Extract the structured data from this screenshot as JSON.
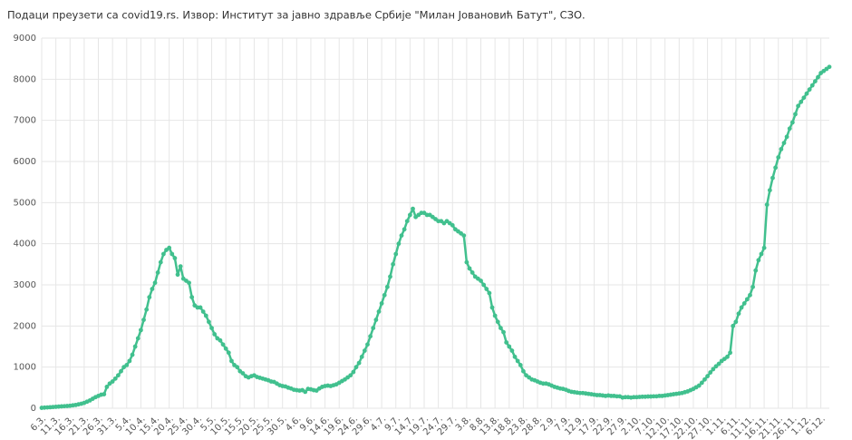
{
  "chart_data": {
    "type": "line",
    "title": "Подаци преузети са covid19.rs. Извор: Институт за јавно здравље Србије \"Милан Јовановић Батут\", СЗО.",
    "categories": [
      "6.3.",
      null,
      null,
      null,
      null,
      "11.3.",
      null,
      null,
      null,
      null,
      "16.3.",
      null,
      null,
      null,
      null,
      "21.3.",
      null,
      null,
      null,
      null,
      "26.3.",
      null,
      null,
      null,
      null,
      "31.3.",
      null,
      null,
      null,
      null,
      "5.4.",
      null,
      null,
      null,
      null,
      "10.4.",
      null,
      null,
      null,
      null,
      "15.4.",
      null,
      null,
      null,
      null,
      "20.4.",
      null,
      null,
      null,
      null,
      "25.4.",
      null,
      null,
      null,
      null,
      "30.4.",
      null,
      null,
      null,
      null,
      "5.5.",
      null,
      null,
      null,
      null,
      "10.5.",
      null,
      null,
      null,
      null,
      "15.5.",
      null,
      null,
      null,
      null,
      "20.5.",
      null,
      null,
      null,
      null,
      "25.5.",
      null,
      null,
      null,
      null,
      "30.5.",
      null,
      null,
      null,
      null,
      "4.6.",
      null,
      null,
      null,
      null,
      "9.6.",
      null,
      null,
      null,
      null,
      "14.6.",
      null,
      null,
      null,
      null,
      "19.6.",
      null,
      null,
      null,
      null,
      "24.6.",
      null,
      null,
      null,
      null,
      "29.6.",
      null,
      null,
      null,
      null,
      "4.7.",
      null,
      null,
      null,
      null,
      "9.7.",
      null,
      null,
      null,
      null,
      "14.7.",
      null,
      null,
      null,
      null,
      "19.7.",
      null,
      null,
      null,
      null,
      "24.7.",
      null,
      null,
      null,
      null,
      "29.7.",
      null,
      null,
      null,
      null,
      "3.8.",
      null,
      null,
      null,
      null,
      "8.8.",
      null,
      null,
      null,
      null,
      "13.8.",
      null,
      null,
      null,
      null,
      "18.8.",
      null,
      null,
      null,
      null,
      "23.8.",
      null,
      null,
      null,
      null,
      "28.8.",
      null,
      null,
      null,
      null,
      "2.9.",
      null,
      null,
      null,
      null,
      "7.9.",
      null,
      null,
      null,
      null,
      "12.9.",
      null,
      null,
      null,
      null,
      "17.9.",
      null,
      null,
      null,
      null,
      "22.9.",
      null,
      null,
      null,
      null,
      "27.9.",
      null,
      null,
      null,
      null,
      "2.10.",
      null,
      null,
      null,
      null,
      "7.10.",
      null,
      null,
      null,
      null,
      "12.10.",
      null,
      null,
      null,
      null,
      "17.10.",
      null,
      null,
      null,
      null,
      "22.10.",
      null,
      null,
      null,
      null,
      "27.10.",
      null,
      null,
      null,
      null,
      "1.11.",
      null,
      null,
      null,
      null,
      "6.11.",
      null,
      null,
      null,
      null,
      "11.11.",
      null,
      null,
      null,
      null,
      "16.11.",
      null,
      null,
      null,
      null,
      "21.11.",
      null,
      null,
      null,
      null,
      "26.11.",
      null,
      null,
      null,
      null,
      "1.12.",
      null,
      null,
      null,
      null,
      "6.12.",
      null,
      null,
      null
    ],
    "series": [
      {
        "color": "#41c08e",
        "values": [
          10,
          15,
          20,
          25,
          30,
          35,
          40,
          45,
          50,
          55,
          60,
          70,
          80,
          95,
          110,
          130,
          160,
          190,
          230,
          270,
          300,
          330,
          340,
          520,
          600,
          650,
          720,
          800,
          900,
          1000,
          1050,
          1150,
          1300,
          1500,
          1700,
          1900,
          2150,
          2400,
          2700,
          2900,
          3050,
          3300,
          3550,
          3750,
          3850,
          3900,
          3750,
          3650,
          3250,
          3450,
          3150,
          3100,
          3050,
          2700,
          2500,
          2450,
          2450,
          2350,
          2250,
          2100,
          1950,
          1800,
          1700,
          1650,
          1550,
          1450,
          1350,
          1150,
          1050,
          1000,
          900,
          850,
          780,
          750,
          780,
          800,
          760,
          740,
          720,
          700,
          680,
          650,
          640,
          600,
          560,
          540,
          530,
          500,
          480,
          450,
          440,
          430,
          440,
          400,
          470,
          460,
          440,
          430,
          480,
          520,
          540,
          550,
          540,
          560,
          580,
          620,
          660,
          700,
          750,
          800,
          880,
          1000,
          1100,
          1250,
          1400,
          1550,
          1750,
          1950,
          2150,
          2350,
          2550,
          2750,
          2950,
          3200,
          3500,
          3750,
          4000,
          4200,
          4350,
          4550,
          4700,
          4850,
          4650,
          4700,
          4750,
          4750,
          4700,
          4700,
          4650,
          4600,
          4550,
          4550,
          4500,
          4550,
          4500,
          4450,
          4350,
          4300,
          4250,
          4200,
          3550,
          3400,
          3300,
          3200,
          3150,
          3100,
          3000,
          2900,
          2800,
          2450,
          2250,
          2100,
          1950,
          1850,
          1600,
          1500,
          1400,
          1250,
          1150,
          1050,
          900,
          800,
          750,
          700,
          680,
          650,
          620,
          600,
          600,
          580,
          550,
          520,
          500,
          480,
          470,
          450,
          420,
          400,
          390,
          380,
          370,
          370,
          360,
          350,
          340,
          330,
          320,
          320,
          310,
          300,
          310,
          300,
          300,
          290,
          290,
          260,
          270,
          270,
          260,
          270,
          270,
          275,
          280,
          280,
          285,
          285,
          290,
          290,
          300,
          300,
          310,
          320,
          330,
          340,
          350,
          360,
          370,
          390,
          410,
          440,
          470,
          510,
          550,
          620,
          700,
          780,
          870,
          950,
          1020,
          1080,
          1150,
          1200,
          1250,
          1350,
          2000,
          2100,
          2300,
          2450,
          2550,
          2650,
          2750,
          2950,
          3350,
          3600,
          3750,
          3900,
          4950,
          5300,
          5600,
          5850,
          6100,
          6300,
          6450,
          6600,
          6800,
          6950,
          7150,
          7350,
          7450,
          7550,
          7650,
          7750,
          7850,
          7950,
          8050,
          8150,
          8200,
          8250,
          8300
        ]
      }
    ],
    "ylim": [
      0,
      9000
    ],
    "yticks": [
      0,
      1000,
      2000,
      3000,
      4000,
      5000,
      6000,
      7000,
      8000,
      9000
    ],
    "grid": true
  }
}
